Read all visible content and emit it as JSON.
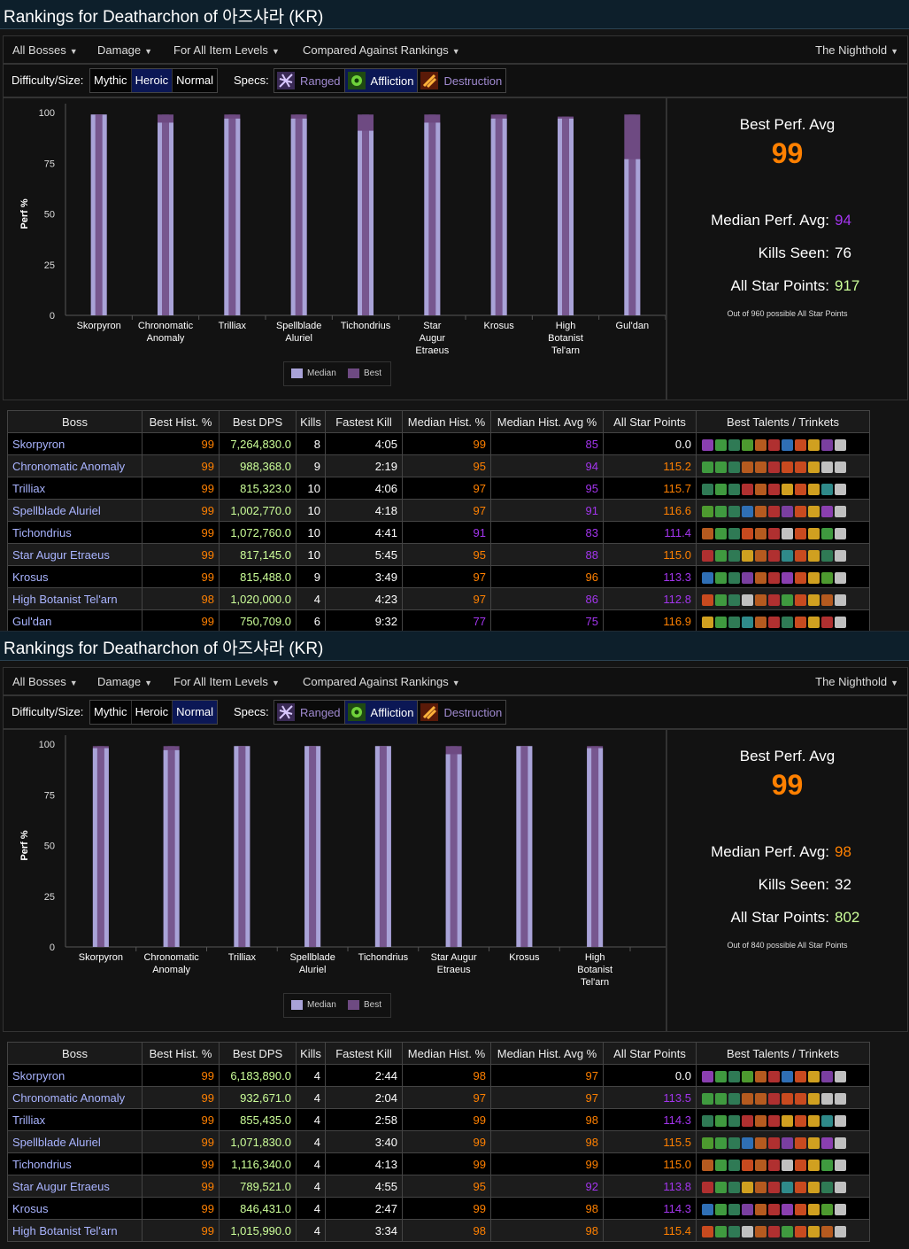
{
  "panels": [
    {
      "title": "Rankings for Deatharchon of 아즈샤라 (KR)",
      "menu": {
        "bosses": "All Bosses",
        "metric": "Damage",
        "ilvl": "For All Item Levels",
        "compare": "Compared Against Rankings",
        "zone": "The Nighthold"
      },
      "filters": {
        "difficulty_label": "Difficulty/Size:",
        "difficulty": [
          {
            "label": "Mythic",
            "selected": false
          },
          {
            "label": "Heroic",
            "selected": true
          },
          {
            "label": "Normal",
            "selected": false
          }
        ],
        "specs_label": "Specs:",
        "specs": [
          {
            "label": "Ranged",
            "icon": "ranged-spec-icon",
            "selected": false
          },
          {
            "label": "Affliction",
            "icon": "affliction-spec-icon",
            "selected": true
          },
          {
            "label": "Destruction",
            "icon": "destruction-spec-icon",
            "selected": false
          }
        ]
      },
      "chart_data": {
        "type": "bar",
        "ylabel": "Perf %",
        "ylim": [
          0,
          100
        ],
        "yticks": [
          100,
          75,
          50,
          25,
          0
        ],
        "categories": [
          "Skorpyron",
          "Chronomatic Anomaly",
          "Trilliax",
          "Spellblade Aluriel",
          "Tichondrius",
          "Star Augur Etraeus",
          "Krosus",
          "High Botanist Tel'arn",
          "Gul'dan"
        ],
        "category_lines": [
          [
            "Skorpyron"
          ],
          [
            "Chronomatic",
            "Anomaly"
          ],
          [
            "Trilliax"
          ],
          [
            "Spellblade",
            "Aluriel"
          ],
          [
            "Tichondrius"
          ],
          [
            "Star",
            "Augur",
            "Etraeus"
          ],
          [
            "Krosus"
          ],
          [
            "High",
            "Botanist",
            "Tel'arn"
          ],
          [
            "Gul'dan"
          ]
        ],
        "series": [
          {
            "name": "Median",
            "values": [
              99,
              95,
              97,
              97,
              91,
              95,
              97,
              97,
              77
            ]
          },
          {
            "name": "Best",
            "values": [
              99,
              99,
              99,
              99,
              99,
              99,
              99,
              98,
              99
            ]
          }
        ],
        "legend": "bottom-center"
      },
      "stats": {
        "best_label": "Best Perf. Avg",
        "best_value": "99",
        "median_label": "Median Perf. Avg:",
        "median_value": "94",
        "median_color": "#a335ee",
        "kills_label": "Kills Seen:",
        "kills_value": "76",
        "asp_label": "All Star Points:",
        "asp_value": "917",
        "footnote": "Out of 960 possible All Star Points"
      },
      "table": {
        "headers": [
          "Boss",
          "Best Hist. %",
          "Best DPS",
          "Kills",
          "Fastest Kill",
          "Median Hist. %",
          "Median Hist. Avg %",
          "All Star Points",
          "Best Talents / Trinkets"
        ],
        "rows": [
          {
            "boss": "Skorpyron",
            "best": "99",
            "dps": "7,264,830.0",
            "kills": "8",
            "fastest": "4:05",
            "median": "99",
            "avg": "85",
            "asp": "0.0",
            "best_c": "leg",
            "median_c": "leg",
            "avg_c": "epic",
            "asp_c": "white"
          },
          {
            "boss": "Chronomatic Anomaly",
            "best": "99",
            "dps": "988,368.0",
            "kills": "9",
            "fastest": "2:19",
            "median": "95",
            "avg": "94",
            "asp": "115.2",
            "best_c": "leg",
            "median_c": "leg",
            "avg_c": "epic",
            "asp_c": "leg"
          },
          {
            "boss": "Trilliax",
            "best": "99",
            "dps": "815,323.0",
            "kills": "10",
            "fastest": "4:06",
            "median": "97",
            "avg": "95",
            "asp": "115.7",
            "best_c": "leg",
            "median_c": "leg",
            "avg_c": "epic",
            "asp_c": "leg"
          },
          {
            "boss": "Spellblade Aluriel",
            "best": "99",
            "dps": "1,002,770.0",
            "kills": "10",
            "fastest": "4:18",
            "median": "97",
            "avg": "91",
            "asp": "116.6",
            "best_c": "leg",
            "median_c": "leg",
            "avg_c": "epic",
            "asp_c": "leg"
          },
          {
            "boss": "Tichondrius",
            "best": "99",
            "dps": "1,072,760.0",
            "kills": "10",
            "fastest": "4:41",
            "median": "91",
            "avg": "83",
            "asp": "111.4",
            "best_c": "leg",
            "median_c": "epic",
            "avg_c": "epic",
            "asp_c": "epic"
          },
          {
            "boss": "Star Augur Etraeus",
            "best": "99",
            "dps": "817,145.0",
            "kills": "10",
            "fastest": "5:45",
            "median": "95",
            "avg": "88",
            "asp": "115.0",
            "best_c": "leg",
            "median_c": "leg",
            "avg_c": "epic",
            "asp_c": "leg"
          },
          {
            "boss": "Krosus",
            "best": "99",
            "dps": "815,488.0",
            "kills": "9",
            "fastest": "3:49",
            "median": "97",
            "avg": "96",
            "asp": "113.3",
            "best_c": "leg",
            "median_c": "leg",
            "avg_c": "leg",
            "asp_c": "epic"
          },
          {
            "boss": "High Botanist Tel'arn",
            "best": "98",
            "dps": "1,020,000.0",
            "kills": "4",
            "fastest": "4:23",
            "median": "97",
            "avg": "86",
            "asp": "112.8",
            "best_c": "leg",
            "median_c": "leg",
            "avg_c": "epic",
            "asp_c": "epic"
          },
          {
            "boss": "Gul'dan",
            "best": "99",
            "dps": "750,709.0",
            "kills": "6",
            "fastest": "9:32",
            "median": "77",
            "avg": "75",
            "asp": "116.9",
            "best_c": "leg",
            "median_c": "epic",
            "avg_c": "epic",
            "asp_c": "leg"
          }
        ]
      }
    },
    {
      "title": "Rankings for Deatharchon of 아즈샤라 (KR)",
      "menu": {
        "bosses": "All Bosses",
        "metric": "Damage",
        "ilvl": "For All Item Levels",
        "compare": "Compared Against Rankings",
        "zone": "The Nighthold"
      },
      "filters": {
        "difficulty_label": "Difficulty/Size:",
        "difficulty": [
          {
            "label": "Mythic",
            "selected": false
          },
          {
            "label": "Heroic",
            "selected": false
          },
          {
            "label": "Normal",
            "selected": true
          }
        ],
        "specs_label": "Specs:",
        "specs": [
          {
            "label": "Ranged",
            "icon": "ranged-spec-icon",
            "selected": false
          },
          {
            "label": "Affliction",
            "icon": "affliction-spec-icon",
            "selected": true
          },
          {
            "label": "Destruction",
            "icon": "destruction-spec-icon",
            "selected": false
          }
        ]
      },
      "chart_data": {
        "type": "bar",
        "ylabel": "Perf %",
        "ylim": [
          0,
          100
        ],
        "yticks": [
          100,
          75,
          50,
          25,
          0
        ],
        "categories": [
          "Skorpyron",
          "Chronomatic Anomaly",
          "Trilliax",
          "Spellblade Aluriel",
          "Tichondrius",
          "Star Augur Etraeus",
          "Krosus",
          "High Botanist Tel'arn"
        ],
        "category_lines": [
          [
            "Skorpyron"
          ],
          [
            "Chronomatic",
            "Anomaly"
          ],
          [
            "Trilliax"
          ],
          [
            "Spellblade",
            "Aluriel"
          ],
          [
            "Tichondrius"
          ],
          [
            "Star Augur",
            "Etraeus"
          ],
          [
            "Krosus"
          ],
          [
            "High",
            "Botanist",
            "Tel'arn"
          ]
        ],
        "series": [
          {
            "name": "Median",
            "values": [
              98,
              97,
              99,
              99,
              99,
              95,
              99,
              98
            ]
          },
          {
            "name": "Best",
            "values": [
              99,
              99,
              99,
              99,
              99,
              99,
              99,
              99
            ]
          }
        ],
        "legend": "bottom-center"
      },
      "stats": {
        "best_label": "Best Perf. Avg",
        "best_value": "99",
        "median_label": "Median Perf. Avg:",
        "median_value": "98",
        "median_color": "#ff8000",
        "kills_label": "Kills Seen:",
        "kills_value": "32",
        "asp_label": "All Star Points:",
        "asp_value": "802",
        "footnote": "Out of 840 possible All Star Points"
      },
      "table": {
        "headers": [
          "Boss",
          "Best Hist. %",
          "Best DPS",
          "Kills",
          "Fastest Kill",
          "Median Hist. %",
          "Median Hist. Avg %",
          "All Star Points",
          "Best Talents / Trinkets"
        ],
        "rows": [
          {
            "boss": "Skorpyron",
            "best": "99",
            "dps": "6,183,890.0",
            "kills": "4",
            "fastest": "2:44",
            "median": "98",
            "avg": "97",
            "asp": "0.0",
            "best_c": "leg",
            "median_c": "leg",
            "avg_c": "leg",
            "asp_c": "white"
          },
          {
            "boss": "Chronomatic Anomaly",
            "best": "99",
            "dps": "932,671.0",
            "kills": "4",
            "fastest": "2:04",
            "median": "97",
            "avg": "97",
            "asp": "113.5",
            "best_c": "leg",
            "median_c": "leg",
            "avg_c": "leg",
            "asp_c": "epic"
          },
          {
            "boss": "Trilliax",
            "best": "99",
            "dps": "855,435.0",
            "kills": "4",
            "fastest": "2:58",
            "median": "99",
            "avg": "98",
            "asp": "114.3",
            "best_c": "leg",
            "median_c": "leg",
            "avg_c": "leg",
            "asp_c": "epic"
          },
          {
            "boss": "Spellblade Aluriel",
            "best": "99",
            "dps": "1,071,830.0",
            "kills": "4",
            "fastest": "3:40",
            "median": "99",
            "avg": "98",
            "asp": "115.5",
            "best_c": "leg",
            "median_c": "leg",
            "avg_c": "leg",
            "asp_c": "leg"
          },
          {
            "boss": "Tichondrius",
            "best": "99",
            "dps": "1,116,340.0",
            "kills": "4",
            "fastest": "4:13",
            "median": "99",
            "avg": "99",
            "asp": "115.0",
            "best_c": "leg",
            "median_c": "leg",
            "avg_c": "leg",
            "asp_c": "leg"
          },
          {
            "boss": "Star Augur Etraeus",
            "best": "99",
            "dps": "789,521.0",
            "kills": "4",
            "fastest": "4:55",
            "median": "95",
            "avg": "92",
            "asp": "113.8",
            "best_c": "leg",
            "median_c": "leg",
            "avg_c": "epic",
            "asp_c": "epic"
          },
          {
            "boss": "Krosus",
            "best": "99",
            "dps": "846,431.0",
            "kills": "4",
            "fastest": "2:47",
            "median": "99",
            "avg": "98",
            "asp": "114.3",
            "best_c": "leg",
            "median_c": "leg",
            "avg_c": "leg",
            "asp_c": "epic"
          },
          {
            "boss": "High Botanist Tel'arn",
            "best": "99",
            "dps": "1,015,990.0",
            "kills": "4",
            "fastest": "3:34",
            "median": "98",
            "avg": "98",
            "asp": "115.4",
            "best_c": "leg",
            "median_c": "leg",
            "avg_c": "leg",
            "asp_c": "leg"
          }
        ]
      }
    }
  ],
  "colors": {
    "legendary": "#ff8000",
    "epic": "#a335ee",
    "median_bar": "#a9a3d8",
    "best_bar": "#6e4a82",
    "selected_button": "#0b1755",
    "boss_link": "#a9b4ff",
    "dps": "#ccff99"
  },
  "talent_icon_palette": [
    "#8a3fb0",
    "#3f9a3f",
    "#2f7a55",
    "#4d9a2f",
    "#b55a1f",
    "#b03030",
    "#2f6fb5",
    "#c84a1f",
    "#d0a020",
    "#7a3fa0",
    "#c0c0c0",
    "#2f8a8a"
  ]
}
